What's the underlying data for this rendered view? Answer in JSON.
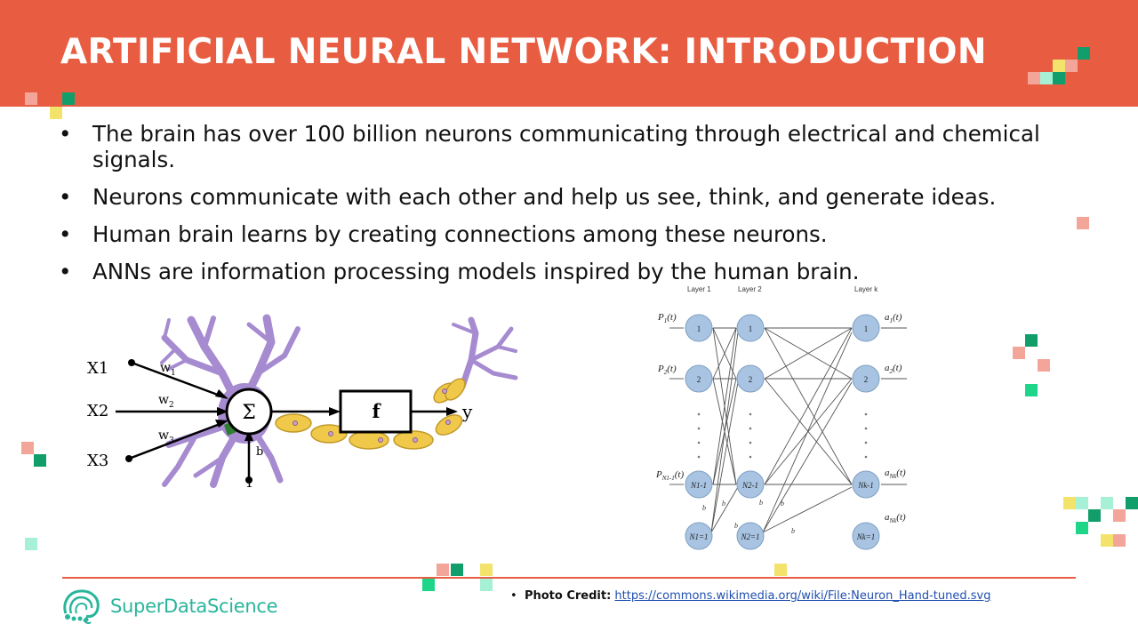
{
  "slide": {
    "title": "ARTIFICIAL NEURAL NETWORK: INTRODUCTION",
    "bullet_char": "•",
    "bullets": [
      "The brain has over 100 billion neurons communicating through electrical and chemical signals.",
      "Neurons communicate with each other and help us see, think, and generate ideas.",
      "Human brain learns by creating connections among these neurons.",
      "ANNs are information processing models inspired by the human brain."
    ]
  },
  "neuron_diagram": {
    "inputs": [
      "X1",
      "X2",
      "X3"
    ],
    "weights": [
      "w",
      "w",
      "w"
    ],
    "weight_subs": [
      "1",
      "2",
      "3"
    ],
    "sum_symbol": "Σ",
    "bias_label": "b",
    "bias_input": "1",
    "activation": "f",
    "output": "y"
  },
  "network_diagram": {
    "layer_headers": [
      "Layer 1",
      "Layer 2",
      "Layer k"
    ],
    "inputs": [
      "P",
      "P",
      "P"
    ],
    "input_subs": [
      "1",
      "2",
      "N1-1"
    ],
    "input_arg": "(t)",
    "layer1_nodes": [
      "1",
      "2",
      "N1-1",
      "N1=1"
    ],
    "layer2_nodes": [
      "1",
      "2",
      "N2-1",
      "N2=1"
    ],
    "layerk_nodes": [
      "1",
      "2",
      "Nk-1",
      "Nk=1"
    ],
    "outputs": [
      "a",
      "a",
      "a",
      "a"
    ],
    "output_subs": [
      "1",
      "2",
      "Nk",
      "Nk"
    ],
    "output_arg": "(t)",
    "bias_labels": [
      "b",
      "b",
      "b",
      "b",
      "b",
      "b"
    ]
  },
  "footer": {
    "brand": "SuperDataScience",
    "credit_label": "Photo Credit:",
    "credit_link": "https://commons.wikimedia.org/wiki/File:Neuron_Hand-tuned.svg",
    "credit_bullet": "•"
  },
  "colors": {
    "header": "#e85d41",
    "brand_teal": "#29b59c",
    "pink": "#f4a59a",
    "green": "#129e6a",
    "yellow": "#f3e36b",
    "mint": "#a6f0d6",
    "neuron_purple": "#a68bd0",
    "axon_yellow": "#f0c84a",
    "node_blue": "#a8c4e2"
  }
}
